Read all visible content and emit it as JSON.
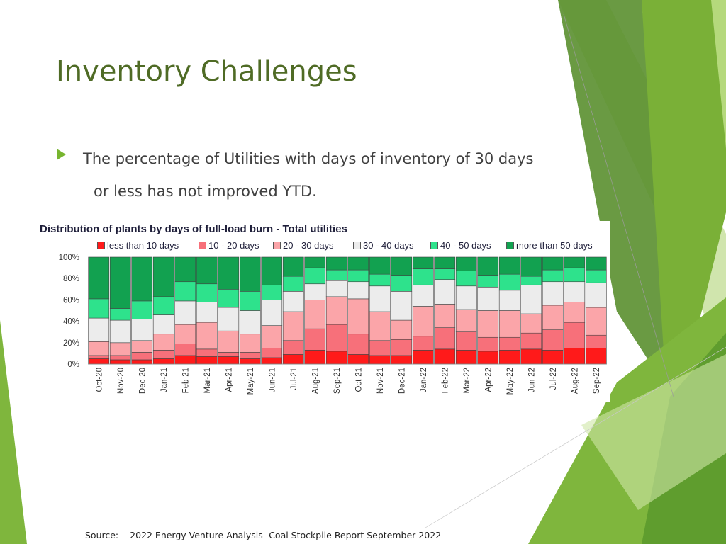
{
  "slide": {
    "title": "Inventory Challenges",
    "bullet": {
      "line1": "The percentage of Utilities with days of inventory of 30 days",
      "line2": "or less has not improved YTD."
    },
    "source_label": "Source:",
    "source_text": "2022 Energy Venture Analysis- Coal Stockpile Report September 2022"
  },
  "colors": {
    "title": "#4f6b25",
    "accent_green": "#77b52f"
  },
  "chart_data": {
    "type": "bar",
    "stacked": true,
    "title": "Distribution of plants by days of full-load burn - Total utilities",
    "ylim": [
      0,
      100
    ],
    "yticks": [
      "0%",
      "20%",
      "40%",
      "60%",
      "80%",
      "100%"
    ],
    "grid": false,
    "legend_position": "top",
    "categories": [
      "Oct-20",
      "Nov-20",
      "Dec-20",
      "Jan-21",
      "Feb-21",
      "Mar-21",
      "Apr-21",
      "May-21",
      "Jun-21",
      "Jul-21",
      "Aug-21",
      "Sep-21",
      "Oct-21",
      "Nov-21",
      "Dec-21",
      "Jan-22",
      "Feb-22",
      "Mar-22",
      "Apr-22",
      "May-22",
      "Jun-22",
      "Jul-22",
      "Aug-22",
      "Sep-22"
    ],
    "series": [
      {
        "name": "less than 10 days",
        "color": "#ff1a1a",
        "values": [
          5,
          4,
          4,
          5,
          8,
          7,
          7,
          5,
          6,
          9,
          13,
          12,
          9,
          8,
          8,
          13,
          14,
          13,
          12,
          13,
          14,
          13,
          15,
          15
        ]
      },
      {
        "name": "10 - 20 days",
        "color": "#f7707a",
        "values": [
          3,
          4,
          7,
          8,
          11,
          7,
          4,
          6,
          9,
          13,
          20,
          25,
          19,
          14,
          15,
          13,
          20,
          17,
          13,
          12,
          15,
          19,
          24,
          12
        ]
      },
      {
        "name": "20 - 30 days",
        "color": "#fba5a9",
        "values": [
          13,
          12,
          11,
          15,
          18,
          25,
          20,
          17,
          21,
          27,
          27,
          26,
          33,
          27,
          18,
          28,
          22,
          21,
          25,
          25,
          18,
          23,
          19,
          26
        ]
      },
      {
        "name": "30 - 40 days",
        "color": "#ececec",
        "values": [
          22,
          21,
          20,
          18,
          22,
          19,
          22,
          22,
          24,
          19,
          15,
          15,
          16,
          24,
          27,
          20,
          23,
          22,
          22,
          19,
          27,
          22,
          19,
          23
        ]
      },
      {
        "name": "40 - 50 days",
        "color": "#2ee28c",
        "values": [
          18,
          11,
          17,
          17,
          18,
          17,
          17,
          18,
          14,
          14,
          15,
          10,
          11,
          11,
          15,
          15,
          10,
          14,
          11,
          15,
          8,
          11,
          13,
          12
        ]
      },
      {
        "name": "more than 50 days",
        "color": "#12a150",
        "values": [
          39,
          48,
          41,
          37,
          23,
          25,
          30,
          32,
          26,
          18,
          10,
          12,
          12,
          16,
          17,
          11,
          11,
          13,
          17,
          16,
          18,
          12,
          10,
          12
        ]
      }
    ]
  }
}
